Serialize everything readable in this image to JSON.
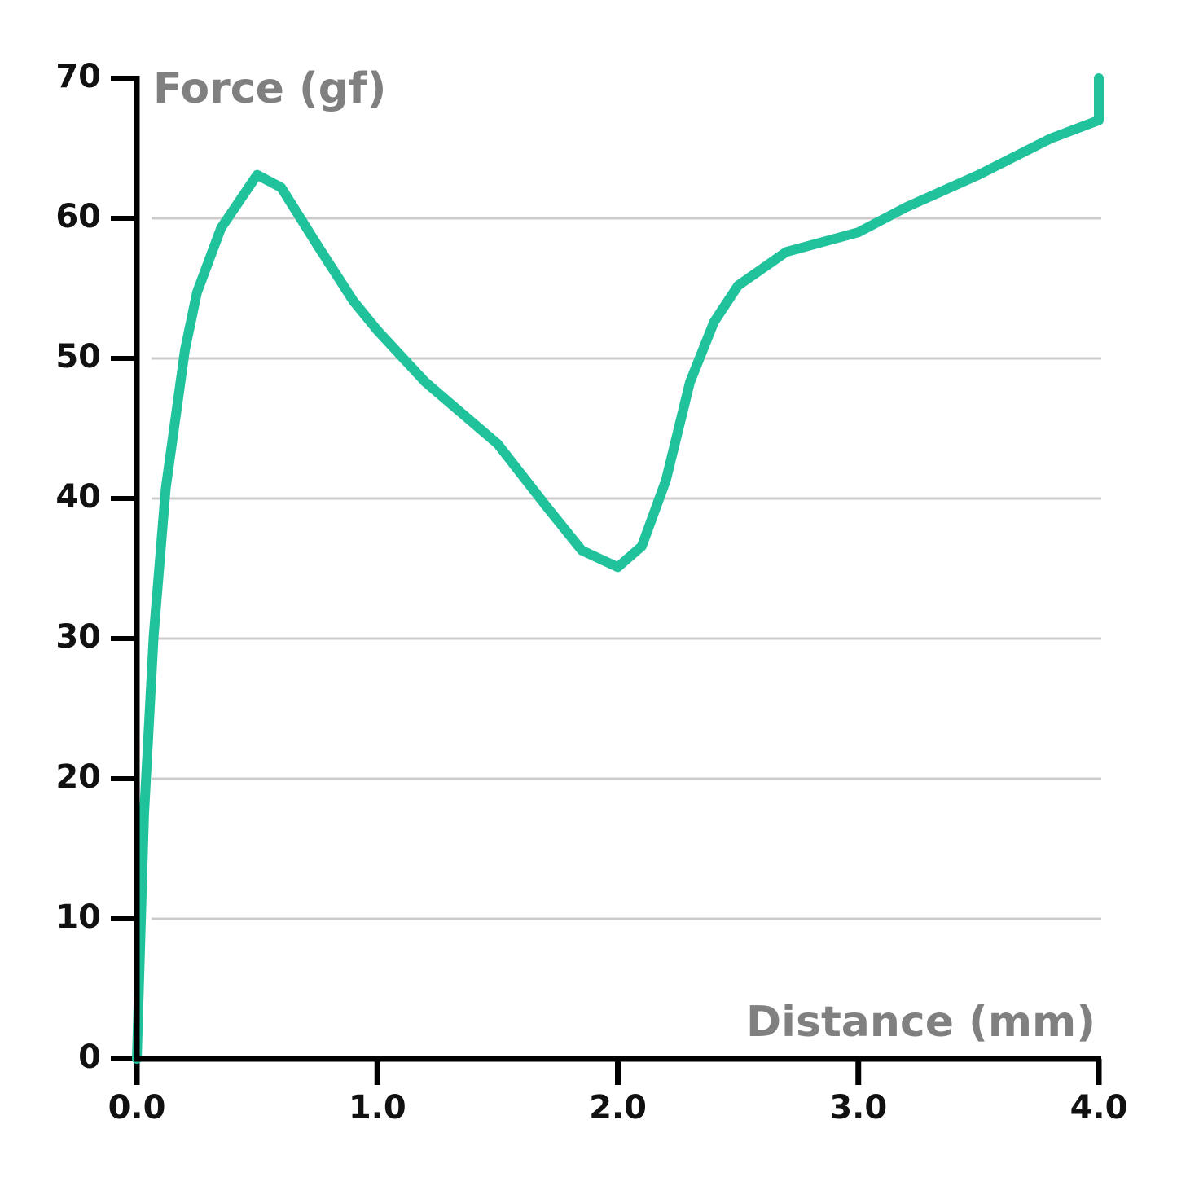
{
  "chart_data": {
    "type": "line",
    "y_label": "Force (gf)",
    "x_label": "Distance (mm)",
    "xlim": [
      0,
      4
    ],
    "ylim": [
      0,
      70
    ],
    "xticks": [
      {
        "value": 0,
        "label": "0.0"
      },
      {
        "value": 1,
        "label": "1.0"
      },
      {
        "value": 2,
        "label": "2.0"
      },
      {
        "value": 3,
        "label": "3.0"
      },
      {
        "value": 4,
        "label": "4.0"
      }
    ],
    "yticks": [
      0,
      10,
      20,
      30,
      40,
      50,
      60,
      70
    ],
    "grid": true,
    "series": [
      {
        "color": "#20c29c",
        "x": [
          0,
          0.03,
          0.07,
          0.12,
          0.2,
          0.25,
          0.35,
          0.5,
          0.6,
          0.75,
          0.9,
          1.0,
          1.2,
          1.5,
          1.7,
          1.85,
          2.0,
          2.1,
          2.2,
          2.3,
          2.4,
          2.5,
          2.7,
          3.0,
          3.2,
          3.5,
          3.8,
          4.0,
          4.0
        ],
        "values": [
          0,
          17.4,
          30.2,
          40.7,
          50.6,
          54.7,
          59.3,
          63.1,
          62.2,
          58.1,
          54.1,
          52,
          48.3,
          43.9,
          39.5,
          36.3,
          35.1,
          36.6,
          41.3,
          48.3,
          52.6,
          55.2,
          57.6,
          59,
          60.8,
          63.1,
          65.7,
          67,
          70
        ]
      }
    ]
  }
}
